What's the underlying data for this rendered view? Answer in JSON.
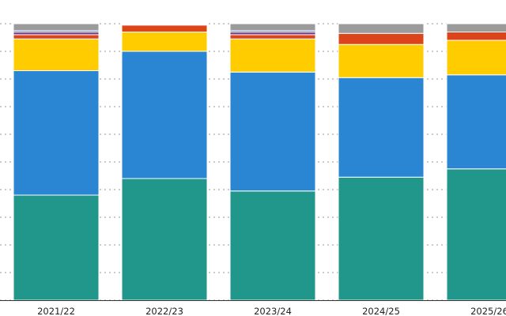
{
  "chart_data": {
    "type": "bar",
    "stacked": true,
    "normalized": true,
    "categories": [
      "2021/22",
      "2022/23",
      "2023/24",
      "2024/25",
      "2025/26"
    ],
    "ylim": [
      0,
      100
    ],
    "grid": true,
    "series": [
      {
        "color": "#21968a",
        "values": [
          38,
          44,
          39.5,
          44.5,
          47.5
        ]
      },
      {
        "color": "#2a85d3",
        "values": [
          45,
          46,
          43,
          36,
          34
        ]
      },
      {
        "color": "#ffcc00",
        "values": [
          11.5,
          7,
          12,
          12,
          12.5
        ]
      },
      {
        "color": "#dc4419",
        "values": [
          1.5,
          2.5,
          1.5,
          4,
          3
        ]
      },
      {
        "color": "#7a4a97",
        "values": [
          1,
          0.3,
          1,
          0,
          0
        ]
      },
      {
        "color": "#3c4c9e",
        "values": [
          0.5,
          0,
          0.5,
          0,
          0
        ]
      },
      {
        "color": "#9b9b9b",
        "values": [
          2.5,
          0.2,
          2.5,
          3.5,
          3
        ]
      }
    ]
  }
}
